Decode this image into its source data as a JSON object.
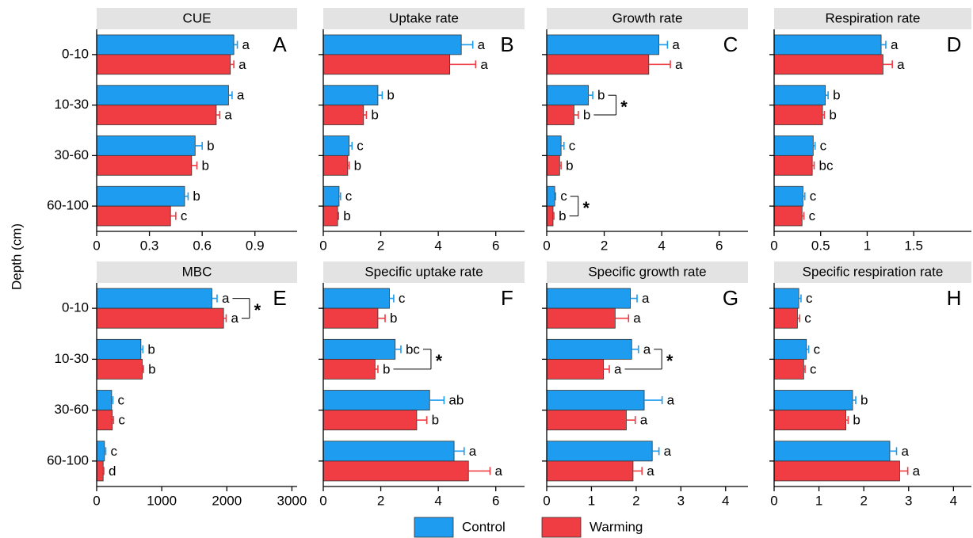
{
  "y_label": "Depth (cm)",
  "chart_data": [
    {
      "type": "bar",
      "title": "CUE",
      "panel": "A",
      "categories": [
        "0-10",
        "10-30",
        "30-60",
        "60-100"
      ],
      "xlim": [
        0,
        1.14
      ],
      "xticks": [
        0,
        0.3,
        0.6,
        0.9
      ],
      "series": [
        {
          "name": "Control",
          "color": "#1e9cf0",
          "values": [
            0.78,
            0.75,
            0.56,
            0.5
          ],
          "errors": [
            0.02,
            0.02,
            0.04,
            0.02
          ],
          "letters": [
            "a",
            "a",
            "b",
            "b"
          ]
        },
        {
          "name": "Warming",
          "color": "#f03c43",
          "values": [
            0.76,
            0.68,
            0.54,
            0.42
          ],
          "errors": [
            0.02,
            0.02,
            0.03,
            0.03
          ],
          "letters": [
            "a",
            "a",
            "b",
            "c"
          ]
        }
      ],
      "stars": [
        null,
        null,
        null,
        null
      ]
    },
    {
      "type": "bar",
      "title": "Uptake rate",
      "panel": "B",
      "xlim": [
        0,
        7
      ],
      "xticks": [
        0,
        2,
        4,
        6
      ],
      "series": [
        {
          "name": "Control",
          "color": "#1e9cf0",
          "values": [
            4.8,
            1.9,
            0.9,
            0.55
          ],
          "errors": [
            0.4,
            0.15,
            0.1,
            0.05
          ],
          "letters": [
            "a",
            "b",
            "c",
            "c"
          ]
        },
        {
          "name": "Warming",
          "color": "#f03c43",
          "values": [
            4.4,
            1.4,
            0.85,
            0.5
          ],
          "errors": [
            0.9,
            0.1,
            0.05,
            0.03
          ],
          "letters": [
            "a",
            "b",
            "b",
            "b"
          ]
        }
      ],
      "stars": [
        null,
        null,
        null,
        null
      ]
    },
    {
      "type": "bar",
      "title": "Growth rate",
      "panel": "C",
      "xlim": [
        0,
        7
      ],
      "xticks": [
        0,
        2,
        4,
        6
      ],
      "series": [
        {
          "name": "Control",
          "color": "#1e9cf0",
          "values": [
            3.9,
            1.45,
            0.5,
            0.28
          ],
          "errors": [
            0.3,
            0.15,
            0.1,
            0.03
          ],
          "letters": [
            "a",
            "b",
            "c",
            "c"
          ]
        },
        {
          "name": "Warming",
          "color": "#f03c43",
          "values": [
            3.55,
            0.95,
            0.45,
            0.22
          ],
          "errors": [
            0.75,
            0.15,
            0.05,
            0.03
          ],
          "letters": [
            "a",
            "b",
            "b",
            "b"
          ]
        }
      ],
      "stars": [
        null,
        "*",
        null,
        "*"
      ]
    },
    {
      "type": "bar",
      "title": "Respiration rate",
      "panel": "D",
      "xlim": [
        0,
        2.12
      ],
      "xticks": [
        0,
        0.5,
        1,
        1.5
      ],
      "series": [
        {
          "name": "Control",
          "color": "#1e9cf0",
          "values": [
            1.15,
            0.55,
            0.42,
            0.31
          ],
          "errors": [
            0.05,
            0.03,
            0.02,
            0.02
          ],
          "letters": [
            "a",
            "b",
            "c",
            "c"
          ]
        },
        {
          "name": "Warming",
          "color": "#f03c43",
          "values": [
            1.17,
            0.52,
            0.41,
            0.3
          ],
          "errors": [
            0.1,
            0.02,
            0.02,
            0.02
          ],
          "letters": [
            "a",
            "b",
            "bc",
            "c"
          ]
        }
      ],
      "stars": [
        null,
        null,
        null,
        null
      ]
    },
    {
      "type": "bar",
      "title": "MBC",
      "panel": "E",
      "categories": [
        "0-10",
        "10-30",
        "30-60",
        "60-100"
      ],
      "xlim": [
        0,
        3080
      ],
      "xticks": [
        0,
        1000,
        2000,
        3000
      ],
      "series": [
        {
          "name": "Control",
          "color": "#1e9cf0",
          "values": [
            1770,
            680,
            230,
            120
          ],
          "errors": [
            80,
            30,
            20,
            20
          ],
          "letters": [
            "a",
            "b",
            "c",
            "c"
          ]
        },
        {
          "name": "Warming",
          "color": "#f03c43",
          "values": [
            1950,
            700,
            240,
            100
          ],
          "errors": [
            40,
            20,
            20,
            10
          ],
          "letters": [
            "a",
            "b",
            "c",
            "d"
          ]
        }
      ],
      "stars": [
        "*",
        null,
        null,
        null
      ]
    },
    {
      "type": "bar",
      "title": "Specific uptake rate",
      "panel": "F",
      "xlim": [
        0,
        7
      ],
      "xticks": [
        0,
        2,
        4,
        6
      ],
      "series": [
        {
          "name": "Control",
          "color": "#1e9cf0",
          "values": [
            2.3,
            2.5,
            3.7,
            4.55
          ],
          "errors": [
            0.15,
            0.2,
            0.5,
            0.35
          ],
          "letters": [
            "c",
            "bc",
            "ab",
            "a"
          ]
        },
        {
          "name": "Warming",
          "color": "#f03c43",
          "values": [
            1.9,
            1.8,
            3.25,
            5.05
          ],
          "errors": [
            0.25,
            0.1,
            0.35,
            0.75
          ],
          "letters": [
            "b",
            "b",
            "b",
            "a"
          ]
        }
      ],
      "stars": [
        null,
        "*",
        null,
        null
      ]
    },
    {
      "type": "bar",
      "title": "Specific growth rate",
      "panel": "G",
      "xlim": [
        0,
        4.5
      ],
      "xticks": [
        0,
        1,
        2,
        3,
        4
      ],
      "series": [
        {
          "name": "Control",
          "color": "#1e9cf0",
          "values": [
            1.87,
            1.9,
            2.18,
            2.36
          ],
          "errors": [
            0.15,
            0.15,
            0.4,
            0.15
          ],
          "letters": [
            "a",
            "a",
            "a",
            "a"
          ]
        },
        {
          "name": "Warming",
          "color": "#f03c43",
          "values": [
            1.53,
            1.27,
            1.78,
            1.93
          ],
          "errors": [
            0.3,
            0.13,
            0.2,
            0.2
          ],
          "letters": [
            "a",
            "a",
            "a",
            "a"
          ]
        }
      ],
      "stars": [
        null,
        "*",
        null,
        null
      ]
    },
    {
      "type": "bar",
      "title": "Specific respiration rate",
      "panel": "H",
      "xlim": [
        0,
        4.4
      ],
      "xticks": [
        0,
        1,
        2,
        3,
        4
      ],
      "series": [
        {
          "name": "Control",
          "color": "#1e9cf0",
          "values": [
            0.55,
            0.72,
            1.75,
            2.58
          ],
          "errors": [
            0.05,
            0.05,
            0.07,
            0.15
          ],
          "letters": [
            "c",
            "c",
            "b",
            "a"
          ]
        },
        {
          "name": "Warming",
          "color": "#f03c43",
          "values": [
            0.52,
            0.66,
            1.6,
            2.8
          ],
          "errors": [
            0.05,
            0.03,
            0.05,
            0.18
          ],
          "letters": [
            "c",
            "c",
            "b",
            "a"
          ]
        }
      ],
      "stars": [
        null,
        null,
        null,
        null
      ]
    }
  ]
}
